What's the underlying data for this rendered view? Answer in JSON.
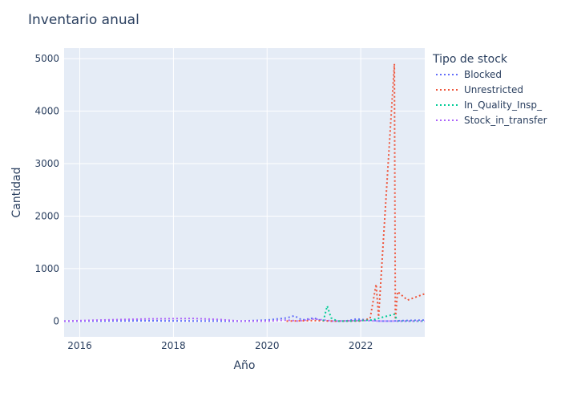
{
  "chart_data": {
    "type": "line",
    "title": "Inventario anual",
    "xlabel": "Año",
    "ylabel": "Cantidad",
    "xlim": [
      "2015-09-01",
      "2023-05-15"
    ],
    "ylim": [
      -300,
      5200
    ],
    "x_ticks": [
      "2016",
      "2018",
      "2020",
      "2022"
    ],
    "y_ticks": [
      "0",
      "1000",
      "2000",
      "3000",
      "4000",
      "5000"
    ],
    "grid": true,
    "line_style": "dotted",
    "legend": {
      "title": "Tipo de stock",
      "position": "right"
    },
    "series": [
      {
        "name": "Blocked",
        "color": "#636efa",
        "points": [
          [
            "2015-09-01",
            0
          ],
          [
            "2017-06-01",
            5
          ],
          [
            "2019-06-01",
            0
          ],
          [
            "2020-01-01",
            20
          ],
          [
            "2020-06-01",
            60
          ],
          [
            "2020-08-01",
            100
          ],
          [
            "2020-10-01",
            20
          ],
          [
            "2021-01-01",
            60
          ],
          [
            "2021-02-15",
            20
          ],
          [
            "2021-05-01",
            0
          ],
          [
            "2021-09-01",
            0
          ],
          [
            "2021-12-01",
            40
          ],
          [
            "2022-03-01",
            20
          ],
          [
            "2022-06-01",
            0
          ],
          [
            "2022-09-01",
            0
          ],
          [
            "2022-12-01",
            10
          ],
          [
            "2023-05-15",
            20
          ]
        ]
      },
      {
        "name": "Unrestricted",
        "color": "#ef553b",
        "points": [
          [
            "2020-06-01",
            0
          ],
          [
            "2021-01-01",
            10
          ],
          [
            "2021-06-01",
            0
          ],
          [
            "2022-01-01",
            0
          ],
          [
            "2022-03-15",
            50
          ],
          [
            "2022-05-01",
            700
          ],
          [
            "2022-05-20",
            80
          ],
          [
            "2022-09-20",
            4900
          ],
          [
            "2022-09-28",
            30
          ],
          [
            "2022-10-15",
            560
          ],
          [
            "2023-01-01",
            400
          ],
          [
            "2023-05-15",
            520
          ]
        ]
      },
      {
        "name": "In_Quality_Insp_",
        "color": "#00cc96",
        "points": [
          [
            "2021-03-15",
            0
          ],
          [
            "2021-04-15",
            290
          ],
          [
            "2021-05-15",
            60
          ],
          [
            "2021-07-01",
            0
          ],
          [
            "2021-10-01",
            0
          ],
          [
            "2022-04-01",
            20
          ],
          [
            "2022-07-01",
            80
          ],
          [
            "2022-09-20",
            130
          ],
          [
            "2022-10-15",
            0
          ],
          [
            "2023-05-15",
            0
          ]
        ]
      },
      {
        "name": "Stock_in_transfer",
        "color": "#ab63fa",
        "points": [
          [
            "2015-09-01",
            0
          ],
          [
            "2016-06-01",
            20
          ],
          [
            "2017-06-01",
            40
          ],
          [
            "2018-06-01",
            50
          ],
          [
            "2019-01-01",
            30
          ],
          [
            "2019-06-01",
            0
          ],
          [
            "2020-01-01",
            0
          ],
          [
            "2020-06-01",
            20
          ],
          [
            "2020-09-01",
            0
          ],
          [
            "2021-01-01",
            40
          ],
          [
            "2021-06-01",
            0
          ],
          [
            "2022-01-01",
            10
          ],
          [
            "2022-06-01",
            0
          ],
          [
            "2023-05-15",
            0
          ]
        ]
      }
    ]
  }
}
